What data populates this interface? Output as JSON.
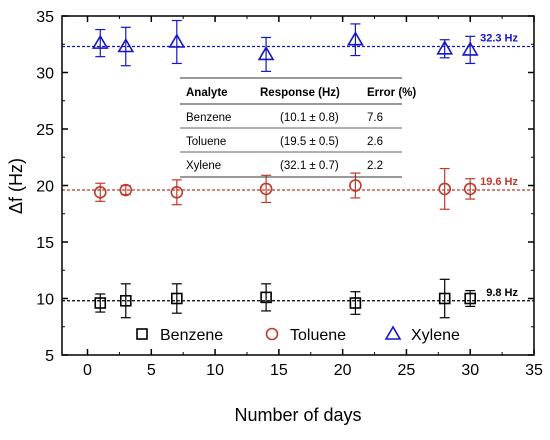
{
  "chart_data": {
    "type": "scatter",
    "xlabel": "Number of days",
    "ylabel": "Δf (Hz)",
    "xlim": [
      -2,
      35
    ],
    "ylim": [
      5,
      35
    ],
    "x_ticks": [
      0,
      5,
      10,
      15,
      20,
      25,
      30,
      35
    ],
    "y_ticks": [
      5,
      10,
      15,
      20,
      25,
      30,
      35
    ],
    "x_tick_labels": [
      "0",
      "5",
      "10",
      "15",
      "20",
      "25",
      "30",
      "35"
    ],
    "y_tick_labels": [
      "5",
      "10",
      "15",
      "20",
      "25",
      "30",
      "35"
    ],
    "legend_position": "bottom",
    "series": [
      {
        "name": "Benzene",
        "marker": "square",
        "color": "#000000",
        "mean_line": 9.8,
        "mean_label": "9.8 Hz",
        "points": [
          {
            "x": 1,
            "y": 9.6,
            "err": 0.8
          },
          {
            "x": 3,
            "y": 9.8,
            "err": 1.5
          },
          {
            "x": 7,
            "y": 10.0,
            "err": 1.3
          },
          {
            "x": 14,
            "y": 10.1,
            "err": 1.2
          },
          {
            "x": 21,
            "y": 9.6,
            "err": 1.0
          },
          {
            "x": 28,
            "y": 10.0,
            "err": 1.7
          },
          {
            "x": 30,
            "y": 10.0,
            "err": 0.7
          }
        ]
      },
      {
        "name": "Toluene",
        "marker": "circle",
        "color": "#c0392b",
        "mean_line": 19.6,
        "mean_label": "19.6 Hz",
        "points": [
          {
            "x": 1,
            "y": 19.4,
            "err": 0.8
          },
          {
            "x": 3,
            "y": 19.6,
            "err": 0.4
          },
          {
            "x": 7,
            "y": 19.4,
            "err": 1.1
          },
          {
            "x": 14,
            "y": 19.7,
            "err": 1.2
          },
          {
            "x": 21,
            "y": 20.0,
            "err": 1.1
          },
          {
            "x": 28,
            "y": 19.7,
            "err": 1.8
          },
          {
            "x": 30,
            "y": 19.7,
            "err": 0.9
          }
        ]
      },
      {
        "name": "Xylene",
        "marker": "triangle",
        "color": "#1515c8",
        "mean_line": 32.3,
        "mean_label": "32.3 Hz",
        "points": [
          {
            "x": 1,
            "y": 32.6,
            "err": 1.2
          },
          {
            "x": 3,
            "y": 32.3,
            "err": 1.7
          },
          {
            "x": 7,
            "y": 32.7,
            "err": 1.9
          },
          {
            "x": 14,
            "y": 31.6,
            "err": 1.5
          },
          {
            "x": 21,
            "y": 32.9,
            "err": 1.4
          },
          {
            "x": 28,
            "y": 32.1,
            "err": 0.8
          },
          {
            "x": 30,
            "y": 32.0,
            "err": 1.2
          }
        ]
      }
    ],
    "table": {
      "headers": [
        "Analyte",
        "Response  (Hz)",
        "Error (%)"
      ],
      "rows": [
        [
          "Benzene",
          "(10.1 ± 0.8)",
          "7.6"
        ],
        [
          "Toluene",
          "(19.5 ± 0.5)",
          "2.6"
        ],
        [
          "Xylene",
          "(32.1 ± 0.7)",
          "2.2"
        ]
      ]
    }
  }
}
